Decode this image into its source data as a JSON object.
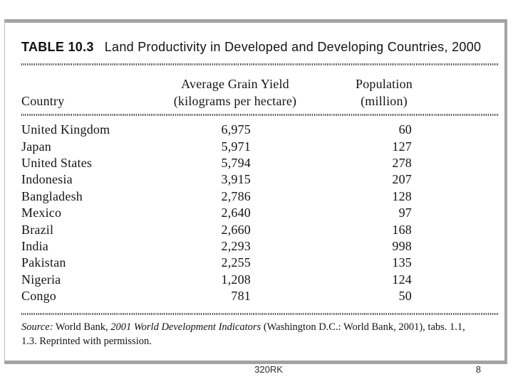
{
  "slide": {
    "footer_code": "320RK",
    "page_number": "8"
  },
  "table": {
    "label": "TABLE 10.3",
    "title": "Land Productivity in Developed and Developing Countries, 2000",
    "columns": {
      "country": "Country",
      "yield_l1": "Average Grain Yield",
      "yield_l2": "(kilograms per hectare)",
      "pop_l1": "Population",
      "pop_l2": "(million)"
    },
    "rows": [
      {
        "country": "United Kingdom",
        "yield": "6,975",
        "population": "60"
      },
      {
        "country": "Japan",
        "yield": "5,971",
        "population": "127"
      },
      {
        "country": "United States",
        "yield": "5,794",
        "population": "278"
      },
      {
        "country": "Indonesia",
        "yield": "3,915",
        "population": "207"
      },
      {
        "country": "Bangladesh",
        "yield": "2,786",
        "population": "128"
      },
      {
        "country": "Mexico",
        "yield": "2,640",
        "population": "97"
      },
      {
        "country": "Brazil",
        "yield": "2,660",
        "population": "168"
      },
      {
        "country": "India",
        "yield": "2,293",
        "population": "998"
      },
      {
        "country": "Pakistan",
        "yield": "2,255",
        "population": "135"
      },
      {
        "country": "Nigeria",
        "yield": "1,208",
        "population": "124"
      },
      {
        "country": "Congo",
        "yield": "781",
        "population": "50"
      }
    ],
    "source": {
      "label": "Source:",
      "seg1": " World Bank, ",
      "work": "2001 World Development Indicators",
      "seg2": " (Washington D.C.: World Bank, 2001), tabs. 1.1,",
      "line2": "1.3. Reprinted with permission."
    }
  },
  "chart_data": {
    "type": "table",
    "title": "TABLE 10.3  Land Productivity in Developed and Developing Countries, 2000",
    "columns": [
      "Country",
      "Average Grain Yield (kilograms per hectare)",
      "Population (million)"
    ],
    "rows": [
      [
        "United Kingdom",
        6975,
        60
      ],
      [
        "Japan",
        5971,
        127
      ],
      [
        "United States",
        5794,
        278
      ],
      [
        "Indonesia",
        3915,
        207
      ],
      [
        "Bangladesh",
        2786,
        128
      ],
      [
        "Mexico",
        2640,
        97
      ],
      [
        "Brazil",
        2660,
        168
      ],
      [
        "India",
        2293,
        998
      ],
      [
        "Pakistan",
        2255,
        135
      ],
      [
        "Nigeria",
        1208,
        124
      ],
      [
        "Congo",
        781,
        50
      ]
    ],
    "source": "Source: World Bank, 2001 World Development Indicators (Washington D.C.: World Bank, 2001), tabs. 1.1, 1.3. Reprinted with permission."
  },
  "colors": {
    "frame_border": "#a3a3a3",
    "text": "#141414"
  }
}
